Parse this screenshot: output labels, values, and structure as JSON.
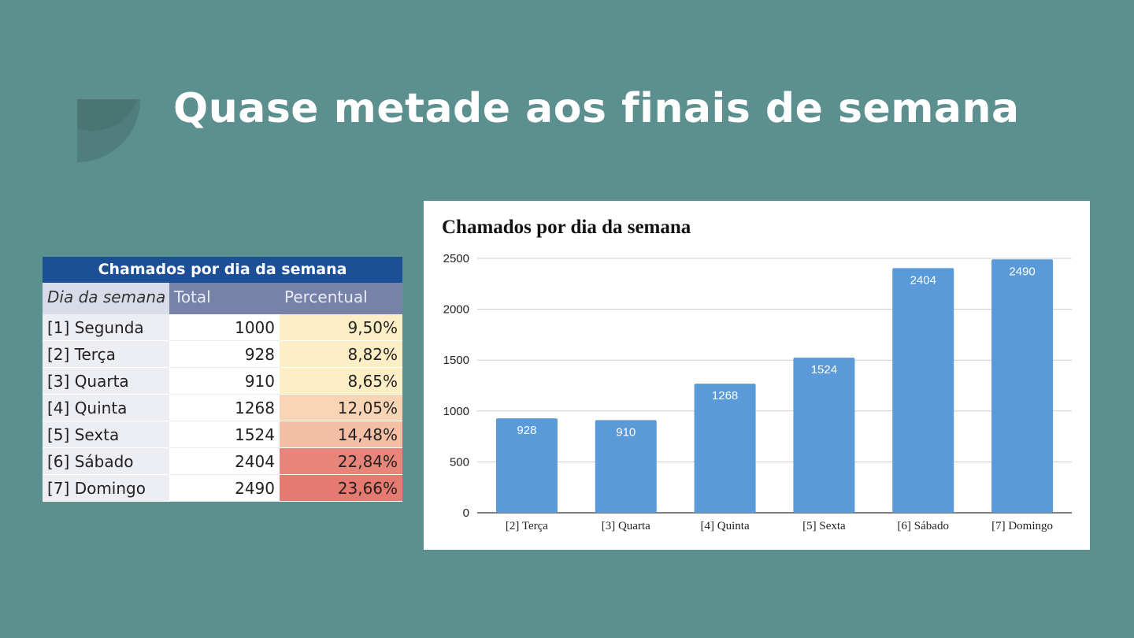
{
  "slide": {
    "title": "Quase metade aos finais de semana",
    "background": "#5b908e"
  },
  "table": {
    "caption": "Chamados por dia da semana",
    "headers": [
      "Dia da semana",
      "Total",
      "Percentual"
    ],
    "rows": [
      {
        "day": "[1] Segunda",
        "total": "1000",
        "percent": "9,50%",
        "color": "#fdeec6"
      },
      {
        "day": "[2] Terça",
        "total": "928",
        "percent": "8,82%",
        "color": "#fdeec6"
      },
      {
        "day": "[3] Quarta",
        "total": "910",
        "percent": "8,65%",
        "color": "#fdeec6"
      },
      {
        "day": "[4] Quinta",
        "total": "1268",
        "percent": "12,05%",
        "color": "#f9d5b6"
      },
      {
        "day": "[5] Sexta",
        "total": "1524",
        "percent": "14,48%",
        "color": "#f5bfa5"
      },
      {
        "day": "[6] Sábado",
        "total": "2404",
        "percent": "22,84%",
        "color": "#e7857a"
      },
      {
        "day": "[7] Domingo",
        "total": "2490",
        "percent": "23,66%",
        "color": "#e67a70"
      }
    ]
  },
  "chart_data": {
    "type": "bar",
    "title": "Chamados por dia da semana",
    "categories": [
      "[2] Terça",
      "[3] Quarta",
      "[4] Quinta",
      "[5] Sexta",
      "[6] Sábado",
      "[7] Domingo"
    ],
    "values": [
      928,
      910,
      1268,
      1524,
      2404,
      2490
    ],
    "yticks": [
      "0",
      "500",
      "1000",
      "1500",
      "2000",
      "2500"
    ],
    "ylim": [
      0,
      2500
    ],
    "grid": true,
    "bar_color": "#5b9ad8",
    "xlabel": "",
    "ylabel": ""
  }
}
